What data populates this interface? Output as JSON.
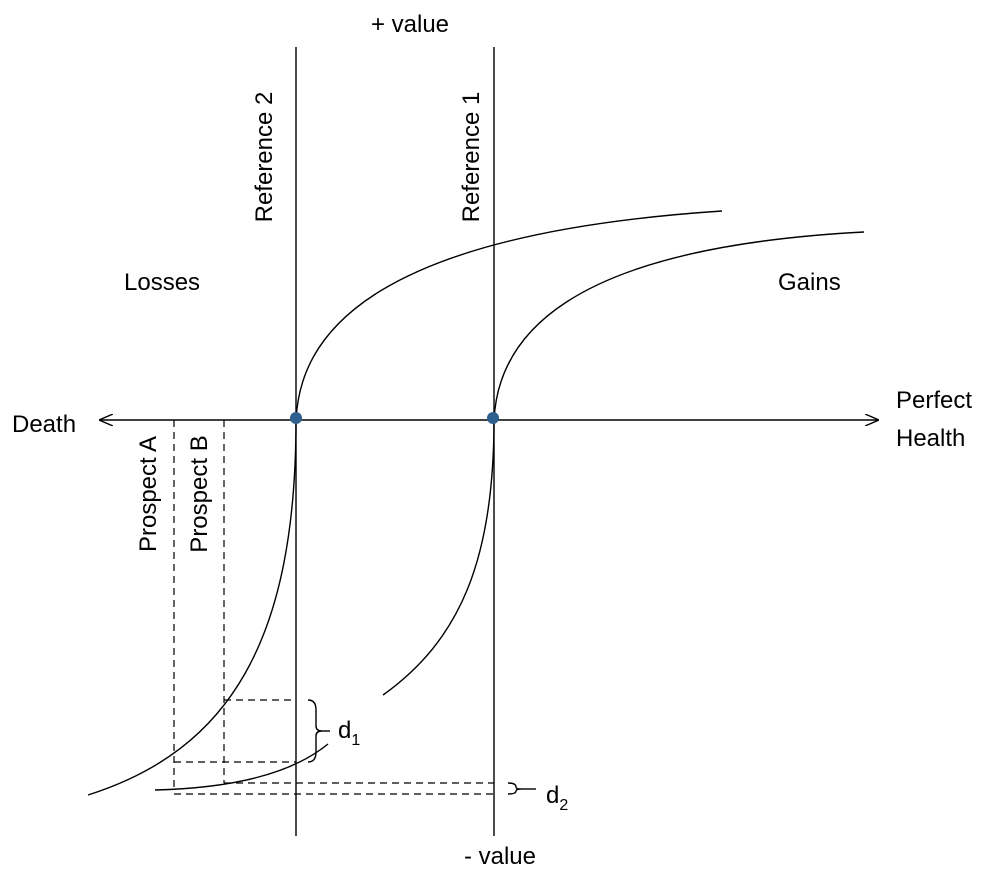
{
  "labels": {
    "top": "+ value",
    "bottom": "- value",
    "left_end": "Death",
    "right_end_line1": "Perfect",
    "right_end_line2": "Health",
    "losses": "Losses",
    "gains": "Gains",
    "reference_1": "Reference 1",
    "reference_2": "Reference 2",
    "prospect_a": "Prospect A",
    "prospect_b": "Prospect B",
    "d1_base": "d",
    "d1_sub": "1",
    "d2_base": "d",
    "d2_sub": "2"
  },
  "colors": {
    "line": "#000000",
    "reference_point": "#2e5f8e",
    "background": "#ffffff"
  }
}
